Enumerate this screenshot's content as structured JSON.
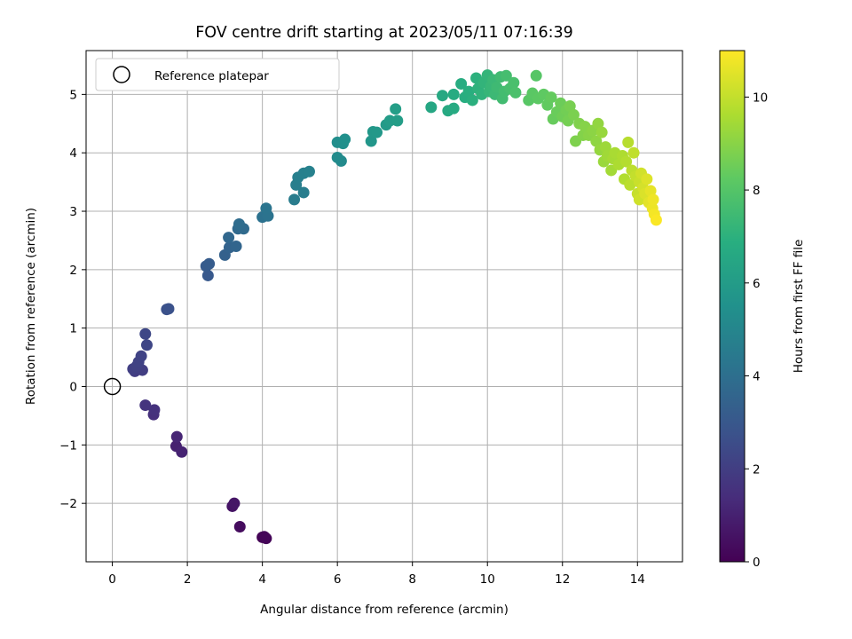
{
  "chart_data": {
    "type": "scatter",
    "title": "FOV centre drift starting at 2023/05/11 07:16:39",
    "xlabel": "Angular distance from reference (arcmin)",
    "ylabel": "Rotation from reference (arcmin)",
    "xlim": [
      -0.7,
      15.2
    ],
    "ylim": [
      -3.0,
      5.75
    ],
    "xticks": [
      0,
      2,
      4,
      6,
      8,
      10,
      12,
      14
    ],
    "yticks": [
      -2,
      -1,
      0,
      1,
      2,
      3,
      4,
      5
    ],
    "xtick_labels": [
      "0",
      "2",
      "4",
      "6",
      "8",
      "10",
      "12",
      "14"
    ],
    "ytick_labels": [
      "−2",
      "−1",
      "0",
      "1",
      "2",
      "3",
      "4",
      "5"
    ],
    "grid": true,
    "legend": {
      "placement": "top-left",
      "entries": [
        "Reference platepar"
      ]
    },
    "reference_point": {
      "x": 0,
      "y": 0,
      "name": "Reference platepar"
    },
    "colorbar": {
      "label": "Hours from first FF file",
      "colormap": "viridis",
      "range": [
        0,
        11
      ],
      "ticks": [
        0,
        2,
        4,
        6,
        8,
        10
      ],
      "tick_labels": [
        "0",
        "2",
        "4",
        "6",
        "8",
        "10"
      ]
    },
    "points": [
      {
        "x": 4.0,
        "y": -2.58,
        "h": 0.05
      },
      {
        "x": 4.1,
        "y": -2.6,
        "h": 0.1
      },
      {
        "x": 4.05,
        "y": -2.57,
        "h": 0.15
      },
      {
        "x": 3.4,
        "y": -2.4,
        "h": 0.35
      },
      {
        "x": 3.2,
        "y": -2.05,
        "h": 0.55
      },
      {
        "x": 3.25,
        "y": -2.0,
        "h": 0.65
      },
      {
        "x": 1.7,
        "y": -1.02,
        "h": 1.0
      },
      {
        "x": 1.85,
        "y": -1.12,
        "h": 1.05
      },
      {
        "x": 1.72,
        "y": -0.86,
        "h": 1.15
      },
      {
        "x": 1.1,
        "y": -0.48,
        "h": 1.5
      },
      {
        "x": 1.12,
        "y": -0.4,
        "h": 1.55
      },
      {
        "x": 0.88,
        "y": -0.32,
        "h": 1.65
      },
      {
        "x": 0.6,
        "y": 0.26,
        "h": 1.95
      },
      {
        "x": 0.8,
        "y": 0.28,
        "h": 2.0
      },
      {
        "x": 0.55,
        "y": 0.3,
        "h": 2.05
      },
      {
        "x": 0.65,
        "y": 0.35,
        "h": 2.1
      },
      {
        "x": 0.7,
        "y": 0.42,
        "h": 2.15
      },
      {
        "x": 0.77,
        "y": 0.52,
        "h": 2.2
      },
      {
        "x": 0.92,
        "y": 0.71,
        "h": 2.3
      },
      {
        "x": 0.88,
        "y": 0.9,
        "h": 2.35
      },
      {
        "x": 1.45,
        "y": 1.32,
        "h": 2.7
      },
      {
        "x": 1.5,
        "y": 1.33,
        "h": 2.75
      },
      {
        "x": 2.55,
        "y": 1.9,
        "h": 3.05
      },
      {
        "x": 2.5,
        "y": 2.06,
        "h": 3.15
      },
      {
        "x": 2.58,
        "y": 2.1,
        "h": 3.2
      },
      {
        "x": 3.0,
        "y": 2.25,
        "h": 3.4
      },
      {
        "x": 3.12,
        "y": 2.38,
        "h": 3.5
      },
      {
        "x": 3.3,
        "y": 2.4,
        "h": 3.55
      },
      {
        "x": 3.1,
        "y": 2.55,
        "h": 3.65
      },
      {
        "x": 3.35,
        "y": 2.7,
        "h": 3.75
      },
      {
        "x": 3.5,
        "y": 2.7,
        "h": 3.8
      },
      {
        "x": 3.38,
        "y": 2.78,
        "h": 3.85
      },
      {
        "x": 4.0,
        "y": 2.9,
        "h": 4.1
      },
      {
        "x": 4.15,
        "y": 2.92,
        "h": 4.15
      },
      {
        "x": 4.1,
        "y": 3.05,
        "h": 4.2
      },
      {
        "x": 4.85,
        "y": 3.2,
        "h": 4.55
      },
      {
        "x": 5.1,
        "y": 3.32,
        "h": 4.6
      },
      {
        "x": 4.9,
        "y": 3.45,
        "h": 4.65
      },
      {
        "x": 4.95,
        "y": 3.58,
        "h": 4.7
      },
      {
        "x": 5.1,
        "y": 3.65,
        "h": 4.75
      },
      {
        "x": 5.25,
        "y": 3.68,
        "h": 4.8
      },
      {
        "x": 6.1,
        "y": 3.86,
        "h": 5.2
      },
      {
        "x": 6.0,
        "y": 3.92,
        "h": 5.25
      },
      {
        "x": 6.0,
        "y": 4.18,
        "h": 5.35
      },
      {
        "x": 6.15,
        "y": 4.16,
        "h": 5.4
      },
      {
        "x": 6.2,
        "y": 4.23,
        "h": 5.45
      },
      {
        "x": 6.9,
        "y": 4.2,
        "h": 5.75
      },
      {
        "x": 6.95,
        "y": 4.36,
        "h": 5.8
      },
      {
        "x": 7.05,
        "y": 4.35,
        "h": 5.85
      },
      {
        "x": 7.3,
        "y": 4.48,
        "h": 5.95
      },
      {
        "x": 7.4,
        "y": 4.55,
        "h": 6.0
      },
      {
        "x": 7.6,
        "y": 4.55,
        "h": 6.05
      },
      {
        "x": 7.55,
        "y": 4.75,
        "h": 6.1
      },
      {
        "x": 8.5,
        "y": 4.78,
        "h": 6.5
      },
      {
        "x": 8.8,
        "y": 4.98,
        "h": 6.6
      },
      {
        "x": 8.95,
        "y": 4.72,
        "h": 6.65
      },
      {
        "x": 9.1,
        "y": 4.76,
        "h": 6.7
      },
      {
        "x": 9.1,
        "y": 5.0,
        "h": 6.75
      },
      {
        "x": 9.3,
        "y": 5.18,
        "h": 6.8
      },
      {
        "x": 9.4,
        "y": 4.95,
        "h": 6.85
      },
      {
        "x": 9.5,
        "y": 5.05,
        "h": 6.9
      },
      {
        "x": 9.6,
        "y": 4.9,
        "h": 6.95
      },
      {
        "x": 9.7,
        "y": 5.28,
        "h": 7.0
      },
      {
        "x": 9.75,
        "y": 5.1,
        "h": 7.05
      },
      {
        "x": 9.85,
        "y": 5.0,
        "h": 7.1
      },
      {
        "x": 9.9,
        "y": 5.2,
        "h": 7.15
      },
      {
        "x": 10.0,
        "y": 5.33,
        "h": 7.2
      },
      {
        "x": 10.05,
        "y": 5.05,
        "h": 7.25
      },
      {
        "x": 10.1,
        "y": 5.15,
        "h": 7.3
      },
      {
        "x": 10.15,
        "y": 5.25,
        "h": 7.35
      },
      {
        "x": 10.2,
        "y": 5.0,
        "h": 7.4
      },
      {
        "x": 10.25,
        "y": 5.12,
        "h": 7.45
      },
      {
        "x": 10.35,
        "y": 5.3,
        "h": 7.5
      },
      {
        "x": 10.4,
        "y": 4.93,
        "h": 7.55
      },
      {
        "x": 10.45,
        "y": 5.05,
        "h": 7.6
      },
      {
        "x": 10.5,
        "y": 5.32,
        "h": 7.65
      },
      {
        "x": 10.6,
        "y": 5.1,
        "h": 7.7
      },
      {
        "x": 10.7,
        "y": 5.2,
        "h": 7.75
      },
      {
        "x": 10.75,
        "y": 5.03,
        "h": 7.8
      },
      {
        "x": 11.3,
        "y": 5.32,
        "h": 8.05
      },
      {
        "x": 11.1,
        "y": 4.9,
        "h": 8.1
      },
      {
        "x": 11.2,
        "y": 5.02,
        "h": 8.15
      },
      {
        "x": 11.35,
        "y": 4.93,
        "h": 8.2
      },
      {
        "x": 11.5,
        "y": 5.0,
        "h": 8.25
      },
      {
        "x": 11.6,
        "y": 4.82,
        "h": 8.3
      },
      {
        "x": 11.7,
        "y": 4.95,
        "h": 8.35
      },
      {
        "x": 11.75,
        "y": 4.58,
        "h": 8.4
      },
      {
        "x": 11.85,
        "y": 4.7,
        "h": 8.45
      },
      {
        "x": 11.95,
        "y": 4.85,
        "h": 8.5
      },
      {
        "x": 12.0,
        "y": 4.62,
        "h": 8.55
      },
      {
        "x": 12.1,
        "y": 4.73,
        "h": 8.6
      },
      {
        "x": 12.15,
        "y": 4.55,
        "h": 8.65
      },
      {
        "x": 12.2,
        "y": 4.8,
        "h": 8.7
      },
      {
        "x": 12.3,
        "y": 4.65,
        "h": 8.75
      },
      {
        "x": 12.35,
        "y": 4.2,
        "h": 8.8
      },
      {
        "x": 12.45,
        "y": 4.5,
        "h": 8.85
      },
      {
        "x": 12.55,
        "y": 4.3,
        "h": 8.9
      },
      {
        "x": 12.6,
        "y": 4.45,
        "h": 8.95
      },
      {
        "x": 12.7,
        "y": 4.3,
        "h": 9.0
      },
      {
        "x": 12.8,
        "y": 4.38,
        "h": 9.05
      },
      {
        "x": 12.9,
        "y": 4.2,
        "h": 9.1
      },
      {
        "x": 12.95,
        "y": 4.5,
        "h": 9.15
      },
      {
        "x": 13.0,
        "y": 4.05,
        "h": 9.2
      },
      {
        "x": 13.05,
        "y": 4.35,
        "h": 9.25
      },
      {
        "x": 13.1,
        "y": 3.85,
        "h": 9.3
      },
      {
        "x": 13.15,
        "y": 4.1,
        "h": 9.35
      },
      {
        "x": 13.2,
        "y": 3.95,
        "h": 9.4
      },
      {
        "x": 13.3,
        "y": 3.7,
        "h": 9.45
      },
      {
        "x": 13.35,
        "y": 3.9,
        "h": 9.5
      },
      {
        "x": 13.4,
        "y": 4.0,
        "h": 9.55
      },
      {
        "x": 13.5,
        "y": 3.8,
        "h": 9.6
      },
      {
        "x": 13.6,
        "y": 3.95,
        "h": 9.65
      },
      {
        "x": 13.65,
        "y": 3.55,
        "h": 9.7
      },
      {
        "x": 13.7,
        "y": 3.85,
        "h": 9.75
      },
      {
        "x": 13.75,
        "y": 4.18,
        "h": 9.8
      },
      {
        "x": 13.8,
        "y": 3.45,
        "h": 9.85
      },
      {
        "x": 13.85,
        "y": 3.7,
        "h": 9.9
      },
      {
        "x": 13.9,
        "y": 4.0,
        "h": 9.95
      },
      {
        "x": 13.95,
        "y": 3.6,
        "h": 10.0
      },
      {
        "x": 14.0,
        "y": 3.3,
        "h": 10.05
      },
      {
        "x": 14.05,
        "y": 3.5,
        "h": 10.1
      },
      {
        "x": 14.05,
        "y": 3.2,
        "h": 10.2
      },
      {
        "x": 14.1,
        "y": 3.65,
        "h": 10.25
      },
      {
        "x": 14.15,
        "y": 3.4,
        "h": 10.3
      },
      {
        "x": 14.2,
        "y": 3.3,
        "h": 10.4
      },
      {
        "x": 14.25,
        "y": 3.55,
        "h": 10.45
      },
      {
        "x": 14.3,
        "y": 3.15,
        "h": 10.55
      },
      {
        "x": 14.35,
        "y": 3.35,
        "h": 10.6
      },
      {
        "x": 14.4,
        "y": 3.05,
        "h": 10.7
      },
      {
        "x": 14.42,
        "y": 3.2,
        "h": 10.75
      },
      {
        "x": 14.45,
        "y": 2.95,
        "h": 10.85
      },
      {
        "x": 14.5,
        "y": 2.85,
        "h": 10.95
      }
    ]
  }
}
